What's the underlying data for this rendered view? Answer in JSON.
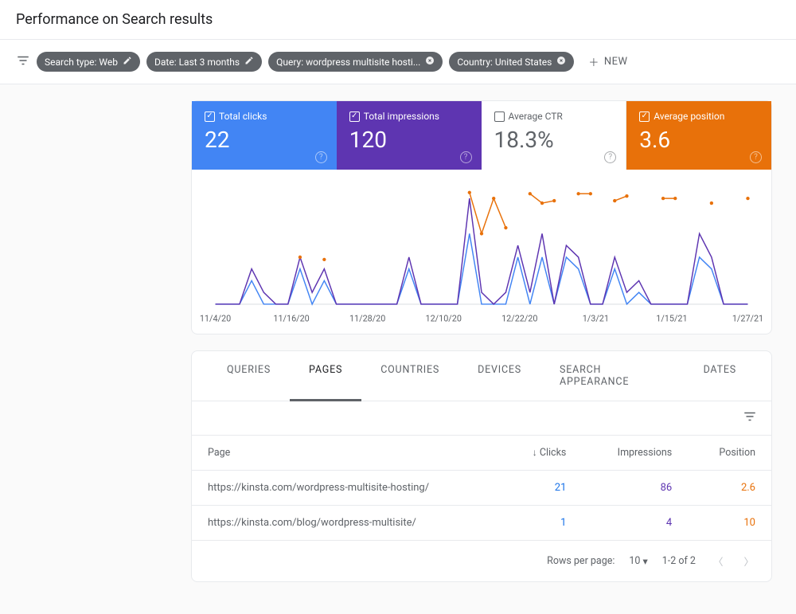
{
  "page_title": "Performance on Search results",
  "filters": {
    "chips": [
      {
        "label": "Search type: Web",
        "icon": "pencil"
      },
      {
        "label": "Date: Last 3 months",
        "icon": "pencil"
      },
      {
        "label": "Query: wordpress multisite hosti...",
        "icon": "close"
      },
      {
        "label": "Country: United States",
        "icon": "close"
      }
    ],
    "new_label": "NEW"
  },
  "metrics": [
    {
      "label": "Total clicks",
      "value": "22",
      "checked": true,
      "bg": "#4285f4"
    },
    {
      "label": "Total impressions",
      "value": "120",
      "checked": true,
      "bg": "#5e35b1"
    },
    {
      "label": "Average CTR",
      "value": "18.3%",
      "checked": false,
      "bg": "#ffffff"
    },
    {
      "label": "Average position",
      "value": "3.6",
      "checked": true,
      "bg": "#e8710a"
    }
  ],
  "chart": {
    "x_labels": [
      "11/4/20",
      "11/16/20",
      "11/28/20",
      "12/10/20",
      "12/22/20",
      "1/3/21",
      "1/15/21",
      "1/27/21"
    ],
    "stroke_colors": {
      "clicks": "#4285f4",
      "impressions": "#5e35b1",
      "position": "#e8710a"
    },
    "ymax": 10,
    "clicks": [
      0,
      0,
      0,
      2,
      0,
      0,
      0,
      3,
      0,
      2,
      0,
      0,
      0,
      0,
      0,
      0,
      3,
      0,
      0,
      0,
      0,
      6,
      0,
      0,
      0,
      4,
      0,
      4,
      0,
      4,
      3,
      0,
      0,
      3,
      0,
      1,
      0,
      0,
      0,
      0,
      4,
      3,
      0,
      0,
      0
    ],
    "impressions": [
      0,
      0,
      0,
      3,
      1,
      0,
      0,
      4,
      1,
      3,
      0,
      0,
      0,
      0,
      0,
      0,
      4,
      0,
      0,
      0,
      0,
      9,
      1,
      0,
      1,
      5,
      1,
      6,
      0,
      5,
      4,
      0,
      0,
      4,
      1,
      2,
      0,
      0,
      0,
      0,
      6,
      4,
      0,
      0,
      0
    ],
    "position_pts": [
      {
        "i": 7,
        "v": 4
      },
      {
        "i": 9,
        "v": 3.8
      },
      {
        "i": 21,
        "v": 9.5
      },
      {
        "i": 22,
        "v": 6
      },
      {
        "i": 23,
        "v": 9
      },
      {
        "i": 24,
        "v": 6.5
      },
      {
        "i": 26,
        "v": 9.4
      },
      {
        "i": 27,
        "v": 8.6
      },
      {
        "i": 28,
        "v": 8.8
      },
      {
        "i": 30,
        "v": 9.4
      },
      {
        "i": 31,
        "v": 9.4
      },
      {
        "i": 33,
        "v": 8.8
      },
      {
        "i": 34,
        "v": 9.2
      },
      {
        "i": 37,
        "v": 9
      },
      {
        "i": 38,
        "v": 9
      },
      {
        "i": 41,
        "v": 8.6
      },
      {
        "i": 44,
        "v": 9
      }
    ]
  },
  "tabs": [
    "QUERIES",
    "PAGES",
    "COUNTRIES",
    "DEVICES",
    "SEARCH APPEARANCE",
    "DATES"
  ],
  "active_tab": 1,
  "table": {
    "columns": [
      "Page",
      "Clicks",
      "Impressions",
      "Position"
    ],
    "sort_col": 1,
    "rows": [
      {
        "page": "https://kinsta.com/wordpress-multisite-hosting/",
        "clicks": "21",
        "impressions": "86",
        "position": "2.6"
      },
      {
        "page": "https://kinsta.com/blog/wordpress-multisite/",
        "clicks": "1",
        "impressions": "4",
        "position": "10"
      }
    ],
    "footer": {
      "rows_per_page_label": "Rows per page:",
      "rows_per_page": "10",
      "range": "1-2 of 2"
    }
  }
}
